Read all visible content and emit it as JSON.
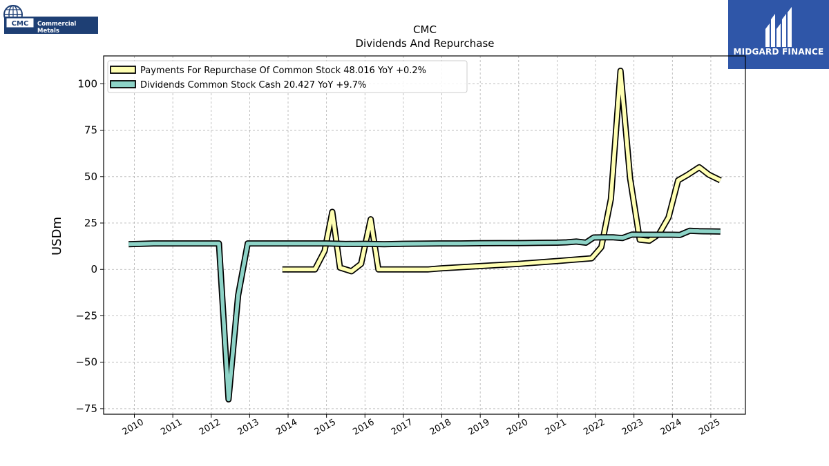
{
  "logos": {
    "company_logo_text": "CMC",
    "company_name": "Commercial Metals",
    "brand_name": "MIDGARD FINANCE"
  },
  "chart_data": {
    "type": "line",
    "title": "CMC",
    "subtitle": "Dividends And Repurchase",
    "xlabel": "",
    "ylabel": "USDm",
    "xlim": [
      2009.2,
      2025.9
    ],
    "ylim": [
      -78,
      115
    ],
    "x_ticks": [
      2010,
      2011,
      2012,
      2013,
      2014,
      2015,
      2016,
      2017,
      2018,
      2019,
      2020,
      2021,
      2022,
      2023,
      2024,
      2025
    ],
    "x_tick_labels": [
      "2010",
      "2011",
      "2012",
      "2013",
      "2014",
      "2015",
      "2016",
      "2017",
      "2018",
      "2019",
      "2020",
      "2021",
      "2022",
      "2023",
      "2024",
      "2025"
    ],
    "y_ticks": [
      -75,
      -50,
      -25,
      0,
      25,
      50,
      75,
      100
    ],
    "y_tick_labels": [
      "−75",
      "−50",
      "−25",
      "0",
      "25",
      "50",
      "75",
      "100"
    ],
    "grid": true,
    "legend_position": "top-left",
    "series": [
      {
        "name": "Payments For Repurchase Of Common Stock  48.016 YoY +0.2%",
        "color": "#ffffb3",
        "x": [
          2013.85,
          2014.25,
          2014.7,
          2014.95,
          2015.15,
          2015.35,
          2015.65,
          2015.9,
          2016.15,
          2016.35,
          2016.7,
          2017.0,
          2017.65,
          2018.0,
          2019.0,
          2020.0,
          2021.0,
          2021.9,
          2022.15,
          2022.4,
          2022.65,
          2022.9,
          2023.15,
          2023.4,
          2023.65,
          2023.9,
          2024.15,
          2024.4,
          2024.7,
          2024.95,
          2025.25
        ],
        "y": [
          0,
          0,
          0,
          10,
          31,
          1,
          -1,
          3,
          27,
          0,
          0,
          0,
          0,
          0.6,
          1.8,
          3,
          4.5,
          6,
          12,
          38,
          107,
          49,
          16,
          15.5,
          19,
          28,
          48,
          51,
          55,
          51,
          48
        ]
      },
      {
        "name": "Dividends Common Stock Cash  20.427 YoY +9.7%",
        "color": "#8dd3c7",
        "x": [
          2009.85,
          2010.5,
          2011.0,
          2011.5,
          2012.0,
          2012.2,
          2012.45,
          2012.7,
          2012.95,
          2013.5,
          2014.0,
          2014.5,
          2015.0,
          2015.5,
          2016.0,
          2016.5,
          2017.0,
          2017.5,
          2018.0,
          2018.5,
          2019.0,
          2019.5,
          2020.0,
          2020.5,
          2021.0,
          2021.25,
          2021.5,
          2021.75,
          2021.95,
          2022.2,
          2022.45,
          2022.7,
          2022.95,
          2023.2,
          2023.5,
          2023.75,
          2024.0,
          2024.2,
          2024.45,
          2024.7,
          2025.0,
          2025.25
        ],
        "y": [
          13.6,
          14,
          14,
          14,
          14,
          14,
          -70,
          -14,
          14,
          14,
          14,
          14,
          14,
          13.7,
          13.8,
          13.6,
          13.8,
          13.9,
          14,
          14,
          14.1,
          14.2,
          14.2,
          14.3,
          14.4,
          14.6,
          15,
          14.4,
          17.2,
          17.3,
          17.3,
          16.9,
          18.8,
          18.7,
          18.7,
          18.7,
          18.7,
          18.6,
          20.8,
          20.6,
          20.5,
          20.4
        ]
      }
    ]
  }
}
